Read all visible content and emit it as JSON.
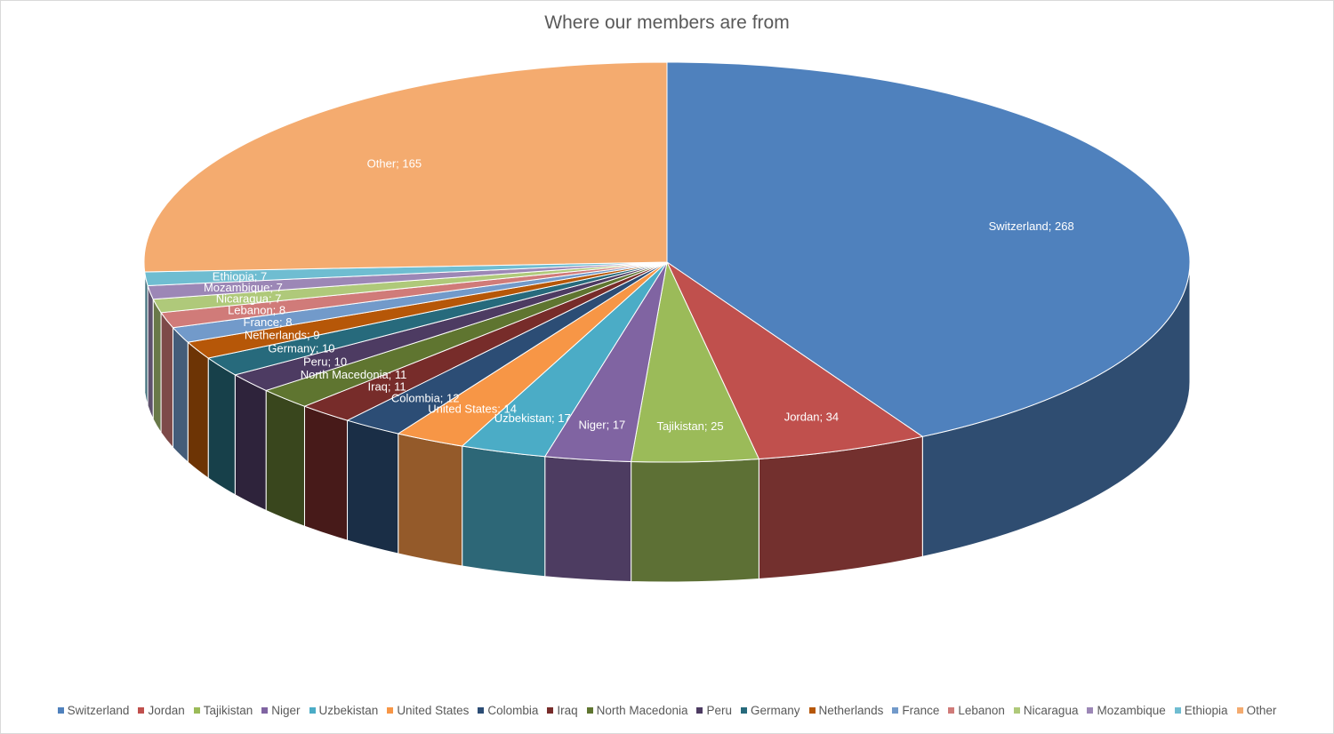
{
  "chart_data": {
    "type": "pie",
    "title": "Where our members are from",
    "categories": [
      "Switzerland",
      "Jordan",
      "Tajikistan",
      "Niger",
      "Uzbekistan",
      "United States",
      "Colombia",
      "Iraq",
      "North Macedonia",
      "Peru",
      "Germany",
      "Netherlands",
      "France",
      "Lebanon",
      "Nicaragua",
      "Mozambique",
      "Ethiopia",
      "Other"
    ],
    "values": [
      268,
      34,
      25,
      17,
      17,
      14,
      12,
      11,
      11,
      10,
      10,
      9,
      8,
      8,
      7,
      7,
      7,
      165
    ],
    "colors": [
      "#4f81bd",
      "#c0504d",
      "#9bbb59",
      "#8064a2",
      "#4bacc6",
      "#f79646",
      "#2c4d75",
      "#772c2a",
      "#5f7530",
      "#4d3b62",
      "#276a7c",
      "#b65708",
      "#729aca",
      "#d07b79",
      "#afc97a",
      "#9c87b6",
      "#6fbdd1",
      "#f4ab6f"
    ],
    "data_label_format": "{category}; {value}",
    "legend_position": "bottom",
    "three_d": true
  }
}
